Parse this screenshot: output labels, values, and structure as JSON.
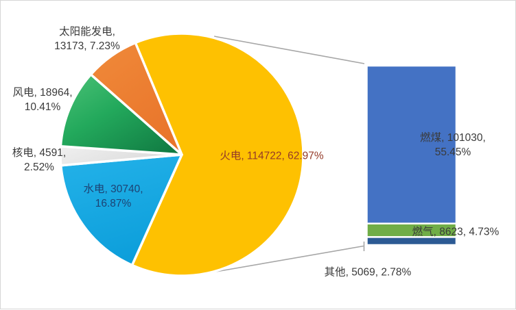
{
  "chart_data": {
    "type": "pie",
    "subtype": "bar-of-pie",
    "title": "",
    "legend": "none",
    "grid": false,
    "start_angle_deg": -22.5,
    "direction": "clockwise",
    "units": "亿千瓦时 (value), percent",
    "slices": [
      {
        "key": "fire",
        "label": "火电",
        "value": 114722,
        "pct": 62.97,
        "color": "#FEC101"
      },
      {
        "key": "hydro",
        "label": "水电",
        "value": 30740,
        "pct": 16.87,
        "color": "#15A9E4"
      },
      {
        "key": "nuclear",
        "label": "核电",
        "value": 4591,
        "pct": 2.52,
        "color": "#E4E4E4"
      },
      {
        "key": "wind",
        "label": "风电",
        "value": 18964,
        "pct": 10.41,
        "color": "#23A95C"
      },
      {
        "key": "solar",
        "label": "太阳能发电",
        "value": 13173,
        "pct": 7.23,
        "color": "#ED7D31"
      }
    ],
    "bar_breakdown": {
      "parent": "火电",
      "segments": [
        {
          "key": "coal",
          "label": "燃煤",
          "value": 101030,
          "pct": 55.45,
          "color": "#4472C4"
        },
        {
          "key": "gas",
          "label": "燃气",
          "value": 8623,
          "pct": 4.73,
          "color": "#70AD47"
        },
        {
          "key": "other",
          "label": "其他",
          "value": 5069,
          "pct": 2.78,
          "color": "#2C5A94"
        }
      ]
    },
    "connector_color": "#A6A6A6"
  },
  "labels": {
    "solar": [
      "太阳能发电,",
      "13173, 7.23%"
    ],
    "wind": [
      "风电, 18964,",
      "10.41%"
    ],
    "nuclear": [
      "核电, 4591,",
      "2.52%"
    ],
    "hydro": [
      "水电, 30740,",
      "16.87%"
    ],
    "fire": [
      "火电, 114722, 62.97%"
    ],
    "coal": [
      "燃煤, 101030,",
      "55.45%"
    ],
    "gas": [
      "燃气, 8623, 4.73%"
    ],
    "other": [
      "其他, 5069, 2.78%"
    ]
  },
  "label_colors": {
    "fire": "#943A28",
    "hydro": "#1D4273",
    "default": "#3A3A3A"
  }
}
